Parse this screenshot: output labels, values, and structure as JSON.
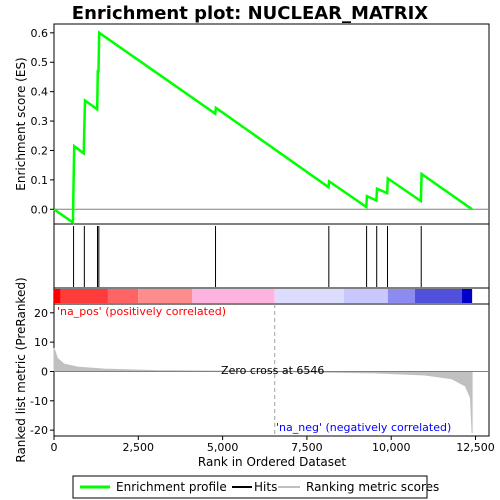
{
  "chart_data": {
    "type": "line",
    "title": "Enrichment plot: NUCLEAR_MATRIX",
    "es_panel": {
      "ylabel": "Enrichment score (ES)",
      "ylim": [
        -0.05,
        0.63
      ],
      "yticks": [
        "0.0",
        "0.1",
        "0.2",
        "0.3",
        "0.4",
        "0.5",
        "0.6"
      ],
      "ytick_values": [
        0.0,
        0.1,
        0.2,
        0.3,
        0.4,
        0.5,
        0.6
      ],
      "series": [
        {
          "name": "Enrichment profile",
          "color": "#00ff00",
          "x": [
            0,
            560,
            600,
            880,
            920,
            1280,
            1300,
            1320,
            1340,
            4780,
            4800,
            8140,
            8160,
            9260,
            9280,
            9560,
            9580,
            9880,
            9900,
            10880,
            10900,
            12400
          ],
          "y": [
            0.0,
            -0.045,
            0.215,
            0.19,
            0.37,
            0.34,
            0.47,
            0.47,
            0.6,
            0.325,
            0.345,
            0.075,
            0.095,
            0.008,
            0.045,
            0.03,
            0.07,
            0.055,
            0.105,
            0.028,
            0.12,
            0.0
          ]
        }
      ]
    },
    "hits": {
      "name": "Hits",
      "color": "#000000",
      "positions": [
        580,
        900,
        1290,
        1330,
        4790,
        8150,
        9270,
        9570,
        9890,
        10890
      ]
    },
    "metric_panel": {
      "ylabel": "Ranked list metric (PreRanked)",
      "ylim": [
        -22,
        23
      ],
      "yticks": [
        "20",
        "10",
        "0",
        "-10",
        "-20"
      ],
      "ytick_values": [
        20,
        10,
        0,
        -10,
        -20
      ],
      "series_name": "Ranking metric scores",
      "color": "#c0c0c0",
      "x": [
        0,
        100,
        300,
        700,
        1500,
        3000,
        6546,
        9500,
        11000,
        11800,
        12200,
        12350,
        12400
      ],
      "y": [
        8,
        4.5,
        2.5,
        1.5,
        0.8,
        0.3,
        0,
        -0.5,
        -1.2,
        -2.5,
        -5,
        -9,
        -21
      ],
      "pos_label": "'na_pos' (positively correlated)",
      "neg_label": "'na_neg' (negatively correlated)",
      "zero_cross_label": "Zero cross at 6546",
      "zero_cross": 6546
    },
    "xaxis": {
      "xlabel": "Rank in Ordered Dataset",
      "xlim": [
        0,
        12900
      ],
      "xticks": [
        "0",
        "2,500",
        "5,000",
        "7,500",
        "10,000",
        "12,500"
      ],
      "xtick_values": [
        0,
        2500,
        5000,
        7500,
        10000,
        12500
      ]
    },
    "color_bar": {
      "segments": [
        {
          "start": 0,
          "end": 200,
          "color": "#ff0000"
        },
        {
          "start": 200,
          "end": 1600,
          "color": "#ff3c3c"
        },
        {
          "start": 1600,
          "end": 2500,
          "color": "#ff6464"
        },
        {
          "start": 2500,
          "end": 4100,
          "color": "#ff8c8c"
        },
        {
          "start": 4100,
          "end": 6546,
          "color": "#ffb4e0"
        },
        {
          "start": 6546,
          "end": 8600,
          "color": "#dcdcff"
        },
        {
          "start": 8600,
          "end": 9900,
          "color": "#c8c8ff"
        },
        {
          "start": 9900,
          "end": 10700,
          "color": "#8c8cf0"
        },
        {
          "start": 10700,
          "end": 12100,
          "color": "#5050dc"
        },
        {
          "start": 12100,
          "end": 12400,
          "color": "#0000c8"
        }
      ]
    },
    "legend": {
      "placement": "bottom",
      "items": [
        {
          "label": "Enrichment profile",
          "color": "#00ff00"
        },
        {
          "label": "Hits",
          "color": "#000000"
        },
        {
          "label": "Ranking metric scores",
          "color": "#c0c0c0"
        }
      ]
    }
  }
}
